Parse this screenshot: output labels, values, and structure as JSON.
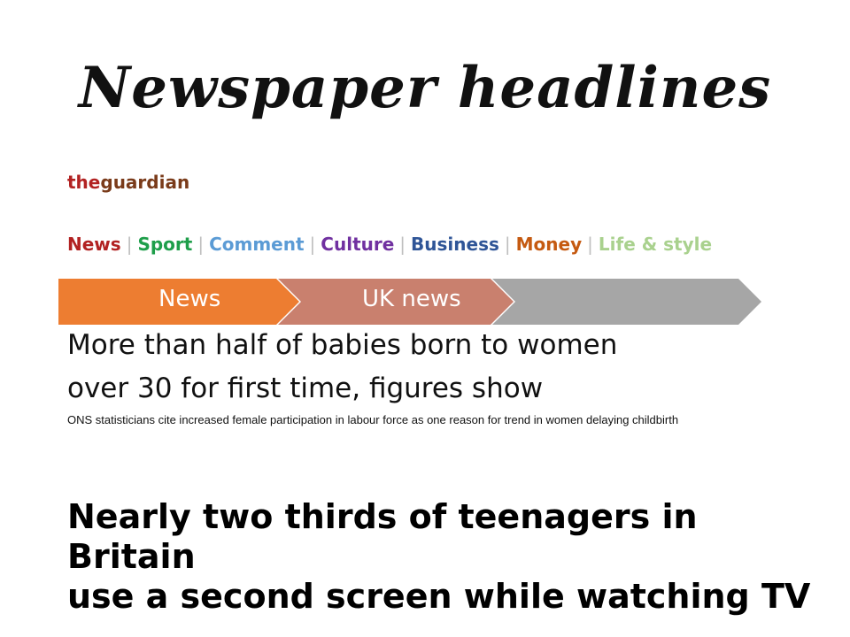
{
  "slide": {
    "title": "Newspaper headlines"
  },
  "brand": {
    "prefix": "the",
    "name": "guardian"
  },
  "nav": {
    "items": [
      {
        "label": "News",
        "color": "#b22222"
      },
      {
        "label": "Sport",
        "color": "#1e9e4a"
      },
      {
        "label": "Comment",
        "color": "#5b9bd5"
      },
      {
        "label": "Culture",
        "color": "#7030a0"
      },
      {
        "label": "Business",
        "color": "#2f5597"
      },
      {
        "label": "Money",
        "color": "#c55a11"
      },
      {
        "label": "Life & style",
        "color": "#a9d18e"
      }
    ],
    "separator": "|"
  },
  "breadcrumb": {
    "items": [
      {
        "label": "News",
        "color": "#ed7d31"
      },
      {
        "label": "UK news",
        "color": "#c9806e"
      },
      {
        "label": "",
        "color": "#a6a6a6"
      }
    ]
  },
  "article": {
    "headline_line1": "More than half of babies born to women",
    "headline_line2": "over 30 for first time, figures show",
    "standfirst": "ONS statisticians cite increased female participation in labour force as one reason for trend in women delaying childbirth"
  },
  "statement": {
    "line1": "Nearly two thirds of teenagers in Britain",
    "line2": "use a second screen while watching TV"
  }
}
